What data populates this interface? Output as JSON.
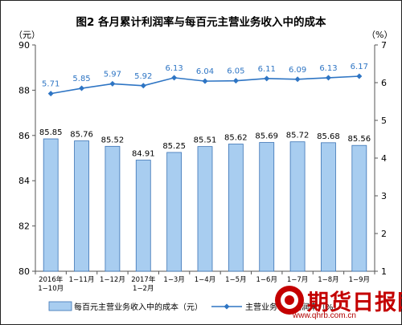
{
  "chart_data": {
    "type": "bar",
    "title": "图2  各月累计利润率与每百元主营业务收入中的成本",
    "left_axis_unit": "（元）",
    "right_axis_unit": "（%）",
    "categories": [
      [
        "2016年",
        "1−10月"
      ],
      [
        "1−11月"
      ],
      [
        "1−12月"
      ],
      [
        "2017年",
        "1−2月"
      ],
      [
        "1−3月"
      ],
      [
        "1−4月"
      ],
      [
        "1−5月"
      ],
      [
        "1−6月"
      ],
      [
        "1−7月"
      ],
      [
        "1−8月"
      ],
      [
        "1−9月"
      ]
    ],
    "left_axis": {
      "min": 80,
      "max": 90,
      "ticks": [
        80,
        82,
        84,
        86,
        88,
        90
      ]
    },
    "right_axis": {
      "min": 1,
      "max": 7,
      "ticks": [
        1,
        2,
        3,
        4,
        5,
        6,
        7
      ]
    },
    "series": [
      {
        "name": "每百元主营业务收入中的成本（元）",
        "type": "bar",
        "axis": "left",
        "color": "#a8cdf0",
        "stroke": "#3a73b5",
        "values": [
          85.85,
          85.76,
          85.52,
          84.91,
          85.25,
          85.51,
          85.62,
          85.69,
          85.72,
          85.68,
          85.56
        ]
      },
      {
        "name": "主营业务收入利润率（%）",
        "type": "line",
        "axis": "right",
        "color": "#2e75c4",
        "values": [
          5.71,
          5.85,
          5.97,
          5.92,
          6.13,
          6.04,
          6.05,
          6.11,
          6.09,
          6.13,
          6.17
        ]
      }
    ],
    "legend_position": "bottom",
    "grid": false
  },
  "watermark": {
    "name": "期货日报网",
    "site": "www.qhrb.com.cn",
    "color": "#c40000"
  }
}
